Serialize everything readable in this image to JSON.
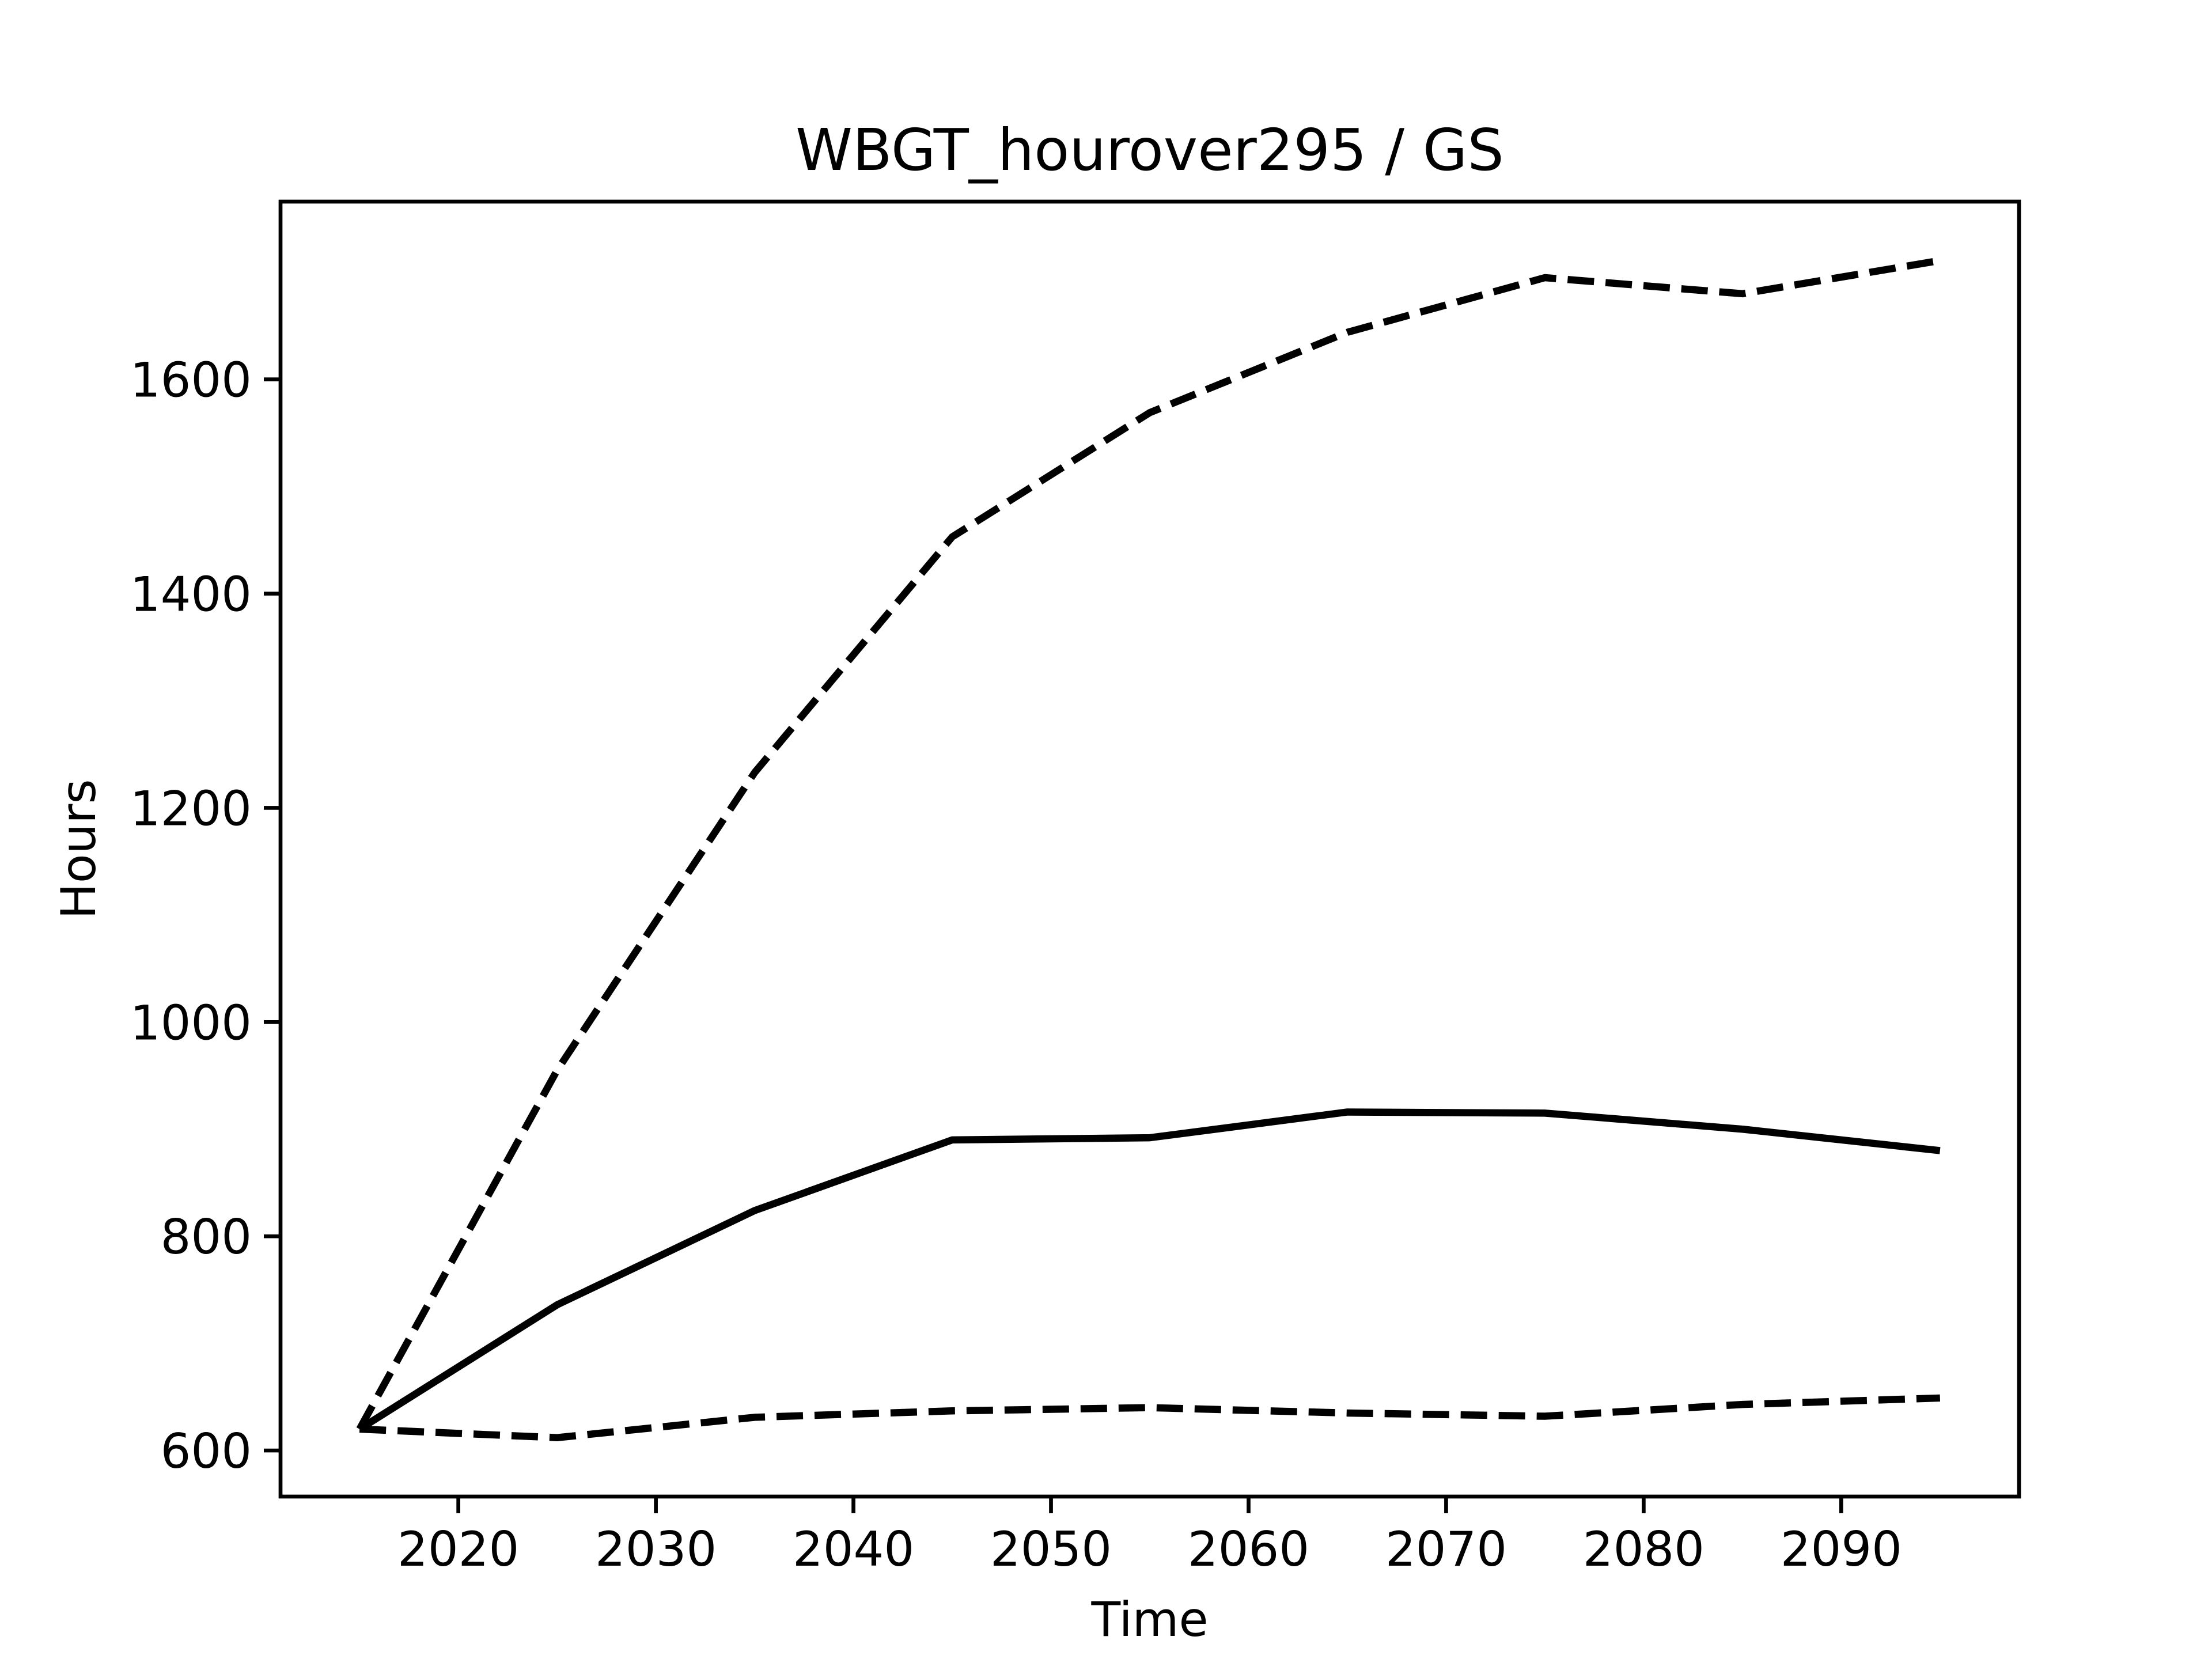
{
  "chart_data": {
    "type": "line",
    "title": "WBGT_hourover295 / GS",
    "x_label": "Time",
    "y_label": "Hours",
    "x": [
      2015,
      2025,
      2035,
      2045,
      2055,
      2065,
      2075,
      2085,
      2095
    ],
    "series": [
      {
        "color": "#000000",
        "linestyle": "dashed",
        "values": [
          620,
          955,
          1233,
          1453,
          1569,
          1644,
          1695,
          1680,
          1711
        ]
      },
      {
        "color": "#000000",
        "linestyle": "solid",
        "values": [
          620,
          736,
          824,
          890,
          892,
          916,
          915,
          900,
          880
        ]
      },
      {
        "color": "#000000",
        "linestyle": "dashed",
        "values": [
          620,
          612,
          631,
          637,
          640,
          635,
          632,
          643,
          649
        ]
      }
    ],
    "xlim": [
      2011,
      2099
    ],
    "xticks": [
      2020,
      2030,
      2040,
      2050,
      2060,
      2070,
      2080,
      2090
    ],
    "ylim": [
      557,
      1766
    ],
    "yticks": [
      600,
      800,
      1000,
      1200,
      1400,
      1600
    ],
    "grid": false
  }
}
